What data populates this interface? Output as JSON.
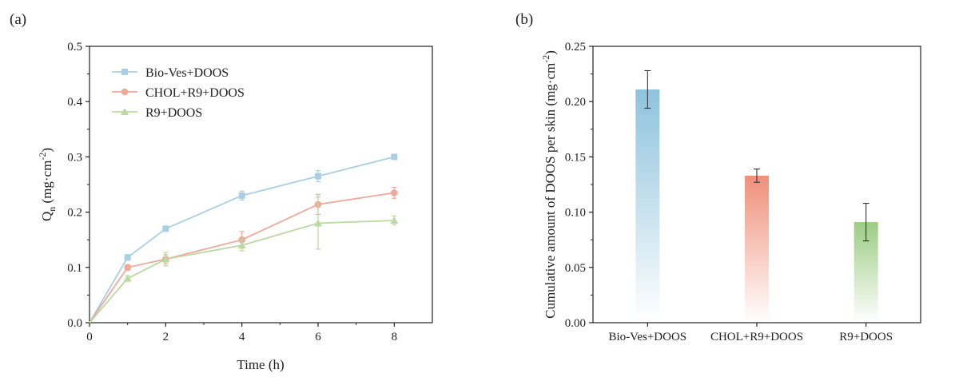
{
  "chart_data": [
    {
      "panel_label": "(a)",
      "type": "line",
      "xlabel": "Time (h)",
      "ylabel_main": "Q",
      "ylabel_sub": "n",
      "ylabel_unit": " (mg·cm",
      "ylabel_sup": "-2",
      "ylabel_close": ")",
      "xlim": [
        0,
        9
      ],
      "ylim": [
        0,
        0.5
      ],
      "xticks": [
        "0",
        "2",
        "4",
        "6",
        "8"
      ],
      "yticks": [
        "0.0",
        "0.1",
        "0.2",
        "0.3",
        "0.4",
        "0.5"
      ],
      "legend_position": "top-left",
      "x": [
        0,
        1,
        2,
        4,
        6,
        8
      ],
      "series": [
        {
          "name": "Bio-Ves+DOOS",
          "color": "#a8cfe3",
          "marker": "square",
          "values": [
            0,
            0.118,
            0.17,
            0.23,
            0.265,
            0.3
          ],
          "errors": [
            0,
            0.005,
            0.004,
            0.008,
            0.01,
            0.004
          ]
        },
        {
          "name": "CHOL+R9+DOOS",
          "color": "#f0a899",
          "marker": "circle",
          "values": [
            0,
            0.1,
            0.115,
            0.15,
            0.214,
            0.235
          ],
          "errors": [
            0,
            0.005,
            0.008,
            0.015,
            0.018,
            0.01
          ]
        },
        {
          "name": "R9+DOOS",
          "color": "#bcd9a2",
          "marker": "triangle",
          "values": [
            0,
            0.08,
            0.115,
            0.14,
            0.18,
            0.185
          ],
          "errors": [
            0,
            0.005,
            0.012,
            0.01,
            0.047,
            0.008
          ]
        }
      ]
    },
    {
      "panel_label": "(b)",
      "type": "bar",
      "ylabel": "Cumulative amount of DOOS per skin (mg·cm",
      "ylabel_sup": "-2",
      "ylabel_close": ")",
      "ylim": [
        0,
        0.25
      ],
      "yticks": [
        "0.00",
        "0.05",
        "0.10",
        "0.15",
        "0.20",
        "0.25"
      ],
      "categories": [
        "Bio-Ves+DOOS",
        "CHOL+R9+DOOS",
        "R9+DOOS"
      ],
      "values": [
        0.211,
        0.133,
        0.091
      ],
      "errors": [
        0.017,
        0.006,
        0.017
      ],
      "colors": [
        "#8ec3dd",
        "#f0907a",
        "#9ccc84"
      ]
    }
  ]
}
